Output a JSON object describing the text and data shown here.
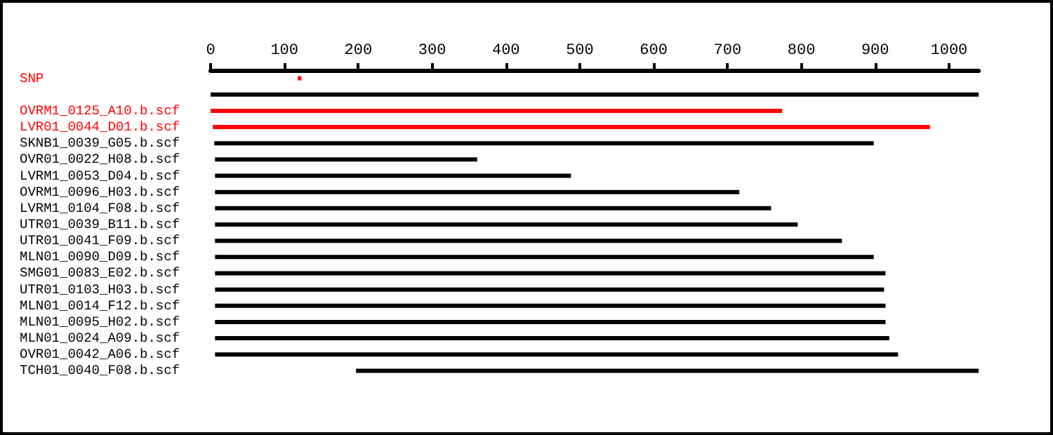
{
  "chart_data": {
    "type": "bar",
    "orientation": "horizontal",
    "categories": [
      "SNP",
      null,
      "OVRM1_0125_A10.b.scf",
      "LVR01_0044_D01.b.scf",
      "SKNB1_0039_G05.b.scf",
      "OVR01_0022_H08.b.scf",
      "LVRM1_0053_D04.b.scf",
      "OVRM1_0096_H03.b.scf",
      "LVRM1_0104_F08.b.scf",
      "UTR01_0039_B11.b.scf",
      "UTR01_0041_F09.b.scf",
      "MLN01_0090_D09.b.scf",
      "SMG01_0083_E02.b.scf",
      "UTR01_0103_H03.b.scf",
      "MLN01_0014_F12.b.scf",
      "MLN01_0095_H02.b.scf",
      "MLN01_0024_A09.b.scf",
      "OVR01_0042_A06.b.scf",
      "TCH01_0040_F08.b.scf"
    ],
    "base": [
      118,
      0,
      0,
      3,
      5,
      6,
      6,
      6,
      6,
      6,
      6,
      6,
      6,
      6,
      6,
      6,
      6,
      6,
      197
    ],
    "values": [
      5,
      1040,
      774,
      971,
      893,
      355,
      482,
      710,
      753,
      789,
      849,
      892,
      908,
      906,
      908,
      908,
      913,
      925,
      843
    ],
    "colors": [
      "#ff0000",
      "#000000",
      "#ff0000",
      "#ff0000",
      "#000000",
      "#000000",
      "#000000",
      "#000000",
      "#000000",
      "#000000",
      "#000000",
      "#000000",
      "#000000",
      "#000000",
      "#000000",
      "#000000",
      "#000000",
      "#000000",
      "#000000"
    ],
    "xlim": [
      0,
      1040
    ],
    "xticks": [
      0,
      100,
      200,
      300,
      400,
      500,
      600,
      700,
      800,
      900,
      1000
    ],
    "grid": false
  }
}
